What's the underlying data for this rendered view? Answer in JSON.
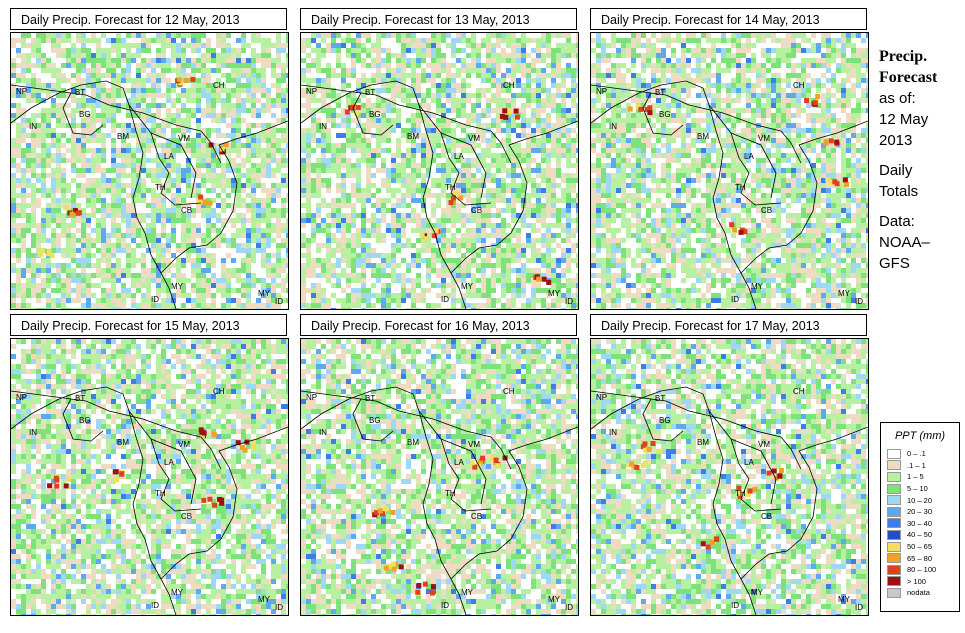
{
  "panels": [
    {
      "title": "Daily Precip. Forecast for  12 May, 2013"
    },
    {
      "title": "Daily Precip. Forecast for  13 May, 2013"
    },
    {
      "title": "Daily Precip. Forecast for  14 May, 2013"
    },
    {
      "title": "Daily Precip. Forecast for  15 May, 2013"
    },
    {
      "title": "Daily Precip. Forecast for  16 May, 2013"
    },
    {
      "title": "Daily Precip. Forecast for  17 May, 2013"
    }
  ],
  "map_labels": [
    "NP",
    "BT",
    "BG",
    "IN",
    "BM",
    "CH",
    "VM",
    "LA",
    "TH",
    "CB",
    "MY",
    "ID",
    "MY",
    "ID"
  ],
  "side": {
    "title1": "Precip.",
    "title2": "Forecast",
    "asof": "as of:",
    "date1": "12 May",
    "date2": "2013",
    "daily1": "Daily",
    "daily2": "Totals",
    "data1": "Data:",
    "data2": "NOAA–",
    "data3": "GFS"
  },
  "legend": {
    "title": "PPT (mm)",
    "items": [
      {
        "label": "0 – .1",
        "color": "#ffffff"
      },
      {
        "label": ".1 – 1",
        "color": "#eedcc2"
      },
      {
        "label": "1 – 5",
        "color": "#b7f0a0"
      },
      {
        "label": "5 – 10",
        "color": "#7ee27a"
      },
      {
        "label": "10 – 20",
        "color": "#9fd8f4"
      },
      {
        "label": "20 – 30",
        "color": "#5ea8ee"
      },
      {
        "label": "30 – 40",
        "color": "#3a7ee6"
      },
      {
        "label": "40 – 50",
        "color": "#1f4fd0"
      },
      {
        "label": "50 – 65",
        "color": "#f2e05a"
      },
      {
        "label": "65 – 80",
        "color": "#f4a024"
      },
      {
        "label": "80 – 100",
        "color": "#e2401c"
      },
      {
        "label": "> 100",
        "color": "#a01010"
      },
      {
        "label": "nodata",
        "color": "#c8c8c8"
      }
    ]
  }
}
